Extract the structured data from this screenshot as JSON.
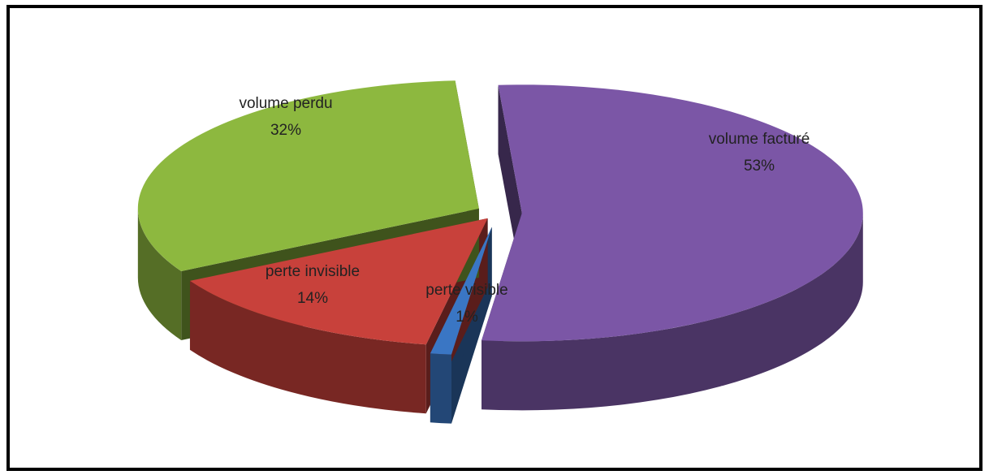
{
  "chart_data": {
    "type": "pie",
    "categories": [
      "volume facturé",
      "perte visible",
      "perte invisible",
      "volume perdu"
    ],
    "values": [
      53,
      1,
      14,
      32
    ],
    "value_labels": [
      "53%",
      "1%",
      "14%",
      "32%"
    ],
    "colors": [
      "#7b56a6",
      "#3a76c4",
      "#c8413b",
      "#8db83f"
    ]
  }
}
